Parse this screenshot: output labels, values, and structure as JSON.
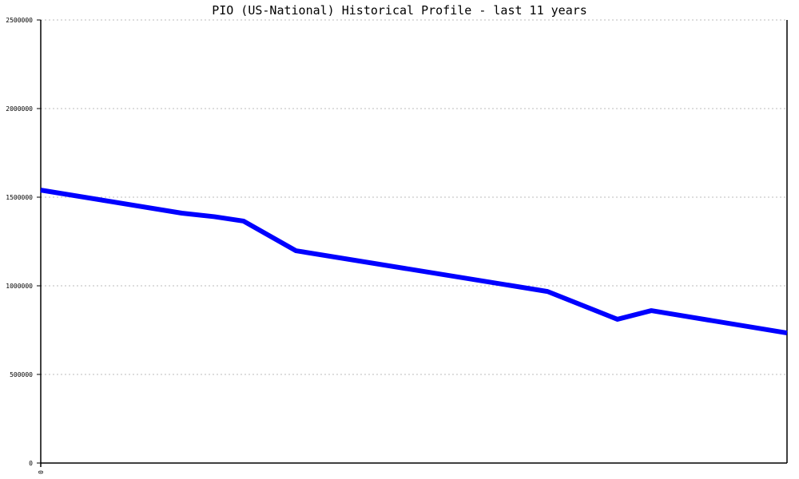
{
  "chart_data": {
    "type": "line",
    "title": "PIO (US-National) Historical Profile - last 11 years",
    "xlabel": "",
    "ylabel": "",
    "x_tick_labels": [
      "0"
    ],
    "y_ticks": [
      0,
      500000,
      1000000,
      1500000,
      2000000,
      2500000
    ],
    "y_tick_labels": [
      "0",
      "500000",
      "1000000",
      "1500000",
      "2000000",
      "2500000"
    ],
    "ylim": [
      0,
      2500000
    ],
    "xlim": [
      0,
      11
    ],
    "grid": "horizontal dotted",
    "series": [
      {
        "color": "#0000ff",
        "x": [
          0,
          2.08,
          2.56,
          2.99,
          3.76,
          7.47,
          8.5,
          9.0,
          11
        ],
        "values": [
          1540000,
          1410000,
          1390000,
          1365000,
          1198000,
          968000,
          811000,
          860000,
          734000
        ]
      }
    ]
  }
}
